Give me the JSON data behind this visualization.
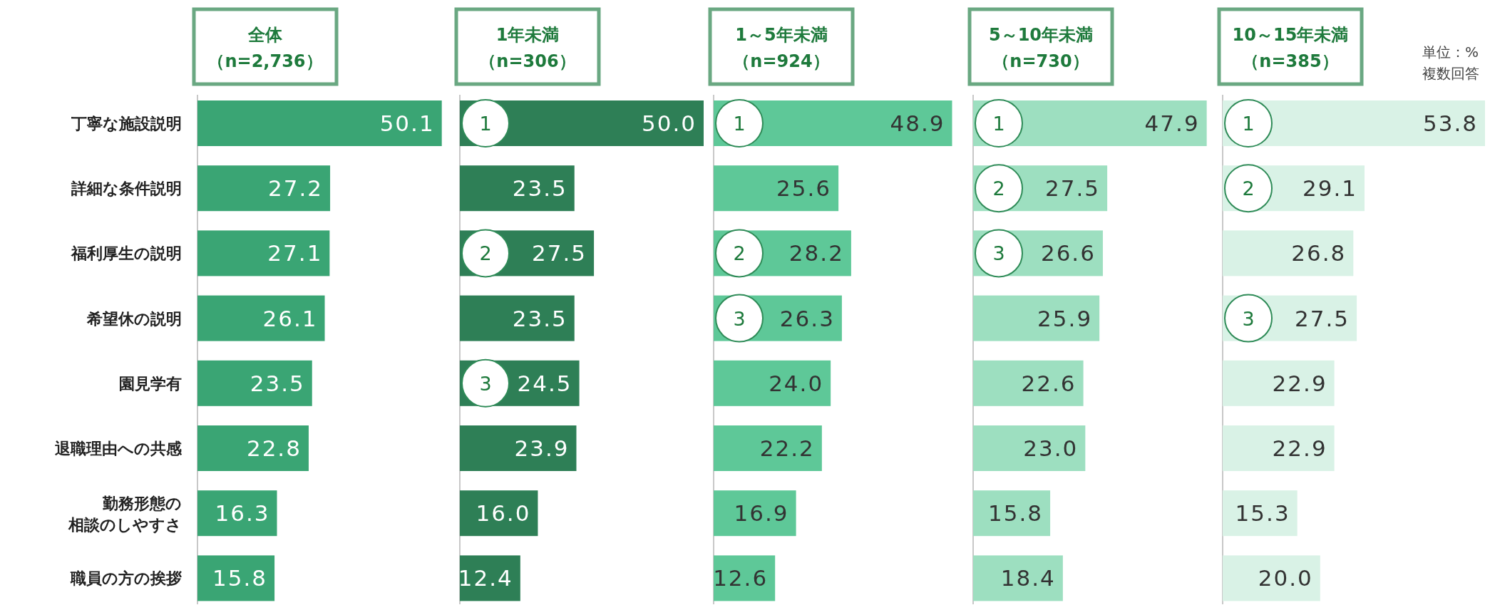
{
  "chart_data": [
    {
      "type": "bar",
      "orientation": "horizontal",
      "title": "全体",
      "subtitle": "（n=2,736）",
      "categories": [
        "丁寧な施設説明",
        "詳細な条件説明",
        "福利厚生の説明",
        "希望休の説明",
        "園見学有",
        "退職理由への共感",
        "勤務形態の相談のしやすさ",
        "職員の方の挨拶"
      ],
      "values": [
        50.1,
        27.2,
        27.1,
        26.1,
        23.5,
        22.8,
        16.3,
        15.8
      ],
      "color": "#3aa574",
      "value_labels": [
        "50.1",
        "27.2",
        "27.1",
        "26.1",
        "23.5",
        "22.8",
        "16.3",
        "15.8"
      ]
    },
    {
      "type": "bar",
      "orientation": "horizontal",
      "title": "1年未満",
      "subtitle": "（n=306）",
      "values": [
        50.0,
        23.5,
        27.5,
        23.5,
        24.5,
        23.9,
        16.0,
        12.4
      ],
      "color": "#2e7f56",
      "value_labels": [
        "50.0",
        "23.5",
        "27.5",
        "23.5",
        "24.5",
        "23.9",
        "16.0",
        "12.4"
      ],
      "annotations": [
        "1",
        "2",
        "3"
      ]
    },
    {
      "type": "bar",
      "orientation": "horizontal",
      "title": "1～5年未満",
      "subtitle": "（n=924）",
      "values": [
        48.9,
        25.6,
        28.2,
        26.3,
        24.0,
        22.2,
        16.9,
        12.6
      ],
      "color": "#5ec898",
      "value_labels": [
        "48.9",
        "25.6",
        "28.2",
        "26.3",
        "24.0",
        "22.2",
        "16.9",
        "12.6"
      ],
      "annotations": [
        "1",
        "2",
        "3"
      ]
    },
    {
      "type": "bar",
      "orientation": "horizontal",
      "title": "5～10年未満",
      "subtitle": "（n=730）",
      "values": [
        47.9,
        27.5,
        26.6,
        25.9,
        22.6,
        23.0,
        15.8,
        18.4
      ],
      "color": "#9ddfc0",
      "value_labels": [
        "47.9",
        "27.5",
        "26.6",
        "25.9",
        "22.6",
        "23.0",
        "15.8",
        "18.4"
      ],
      "annotations": [
        "1",
        "2",
        "3"
      ]
    },
    {
      "type": "bar",
      "orientation": "horizontal",
      "title": "10～15年未満",
      "subtitle": "（n=385）",
      "values": [
        53.8,
        29.1,
        26.8,
        27.5,
        22.9,
        22.9,
        15.3,
        20.0
      ],
      "color": "#d9f2e6",
      "value_labels": [
        "53.8",
        "29.1",
        "26.8",
        "27.5",
        "22.9",
        "22.9",
        "15.3",
        "20.0"
      ],
      "annotations": [
        "1",
        "2",
        "3",
        "単位：%",
        "複数回答"
      ]
    }
  ]
}
